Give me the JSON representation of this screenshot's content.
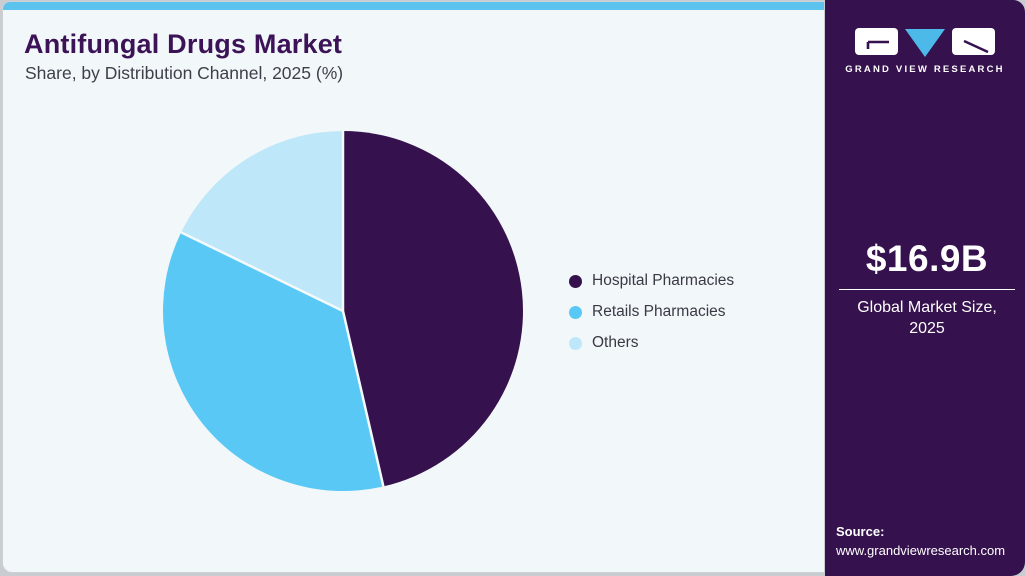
{
  "chart_data": {
    "type": "pie",
    "title": "Antifungal Drugs Market",
    "subtitle": "Share, by Distribution Channel, 2025 (%)",
    "labels": [
      "Hospital Pharmacies",
      "Retails Pharmacies",
      "Others"
    ],
    "values": [
      46.4,
      35.8,
      17.8
    ],
    "unit": "%",
    "colors": [
      "#35114d",
      "#5ac8f4",
      "#bee8f9"
    ],
    "legend_position": "right",
    "start_angle_deg": 0,
    "direction": "clockwise",
    "slice_separator_color": "#f4f9fc"
  },
  "sidebar": {
    "brand": "GRAND VIEW RESEARCH",
    "market_size_value": "$16.9B",
    "market_size_label_line1": "Global Market Size,",
    "market_size_label_line2": "2025",
    "source_label": "Source:",
    "source_url": "www.grandviewresearch.com"
  },
  "colors": {
    "top_bar": "#5cc3ef",
    "card_background": "#f2f7fa",
    "sidebar_background": "#35114d",
    "title_text": "#3b1356",
    "logo_triangle": "#4db9e8"
  }
}
